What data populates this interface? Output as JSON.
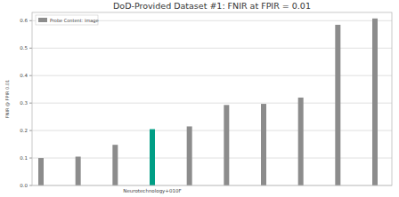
{
  "chart_data": {
    "type": "bar",
    "title": "DoD-Provided Dataset #1: FNIR at FPIR = 0.01",
    "y_label": "FNIR @ FPIR 0.01",
    "categories": [
      null,
      null,
      null,
      "Neurotechnology+010F",
      null,
      null,
      null,
      null,
      null,
      null
    ],
    "series": [
      {
        "name": "Probe Content: Image",
        "color": "#8c8c8c",
        "values": [
          0.1,
          0.105,
          0.148,
          0.205,
          0.215,
          0.293,
          0.297,
          0.32,
          0.585,
          0.608
        ]
      }
    ],
    "colors": [
      "#8c8c8c",
      "#8c8c8c",
      "#8c8c8c",
      "#009e85",
      "#8c8c8c",
      "#8c8c8c",
      "#8c8c8c",
      "#8c8c8c",
      "#8c8c8c",
      "#8c8c8c"
    ],
    "ylim": [
      0,
      0.63
    ],
    "yticks": [
      {
        "value": 0,
        "label": "0.0"
      },
      0.1,
      0.2,
      0.3,
      0.4,
      0.5,
      0.6
    ],
    "grid": true,
    "legend": "upper left"
  }
}
